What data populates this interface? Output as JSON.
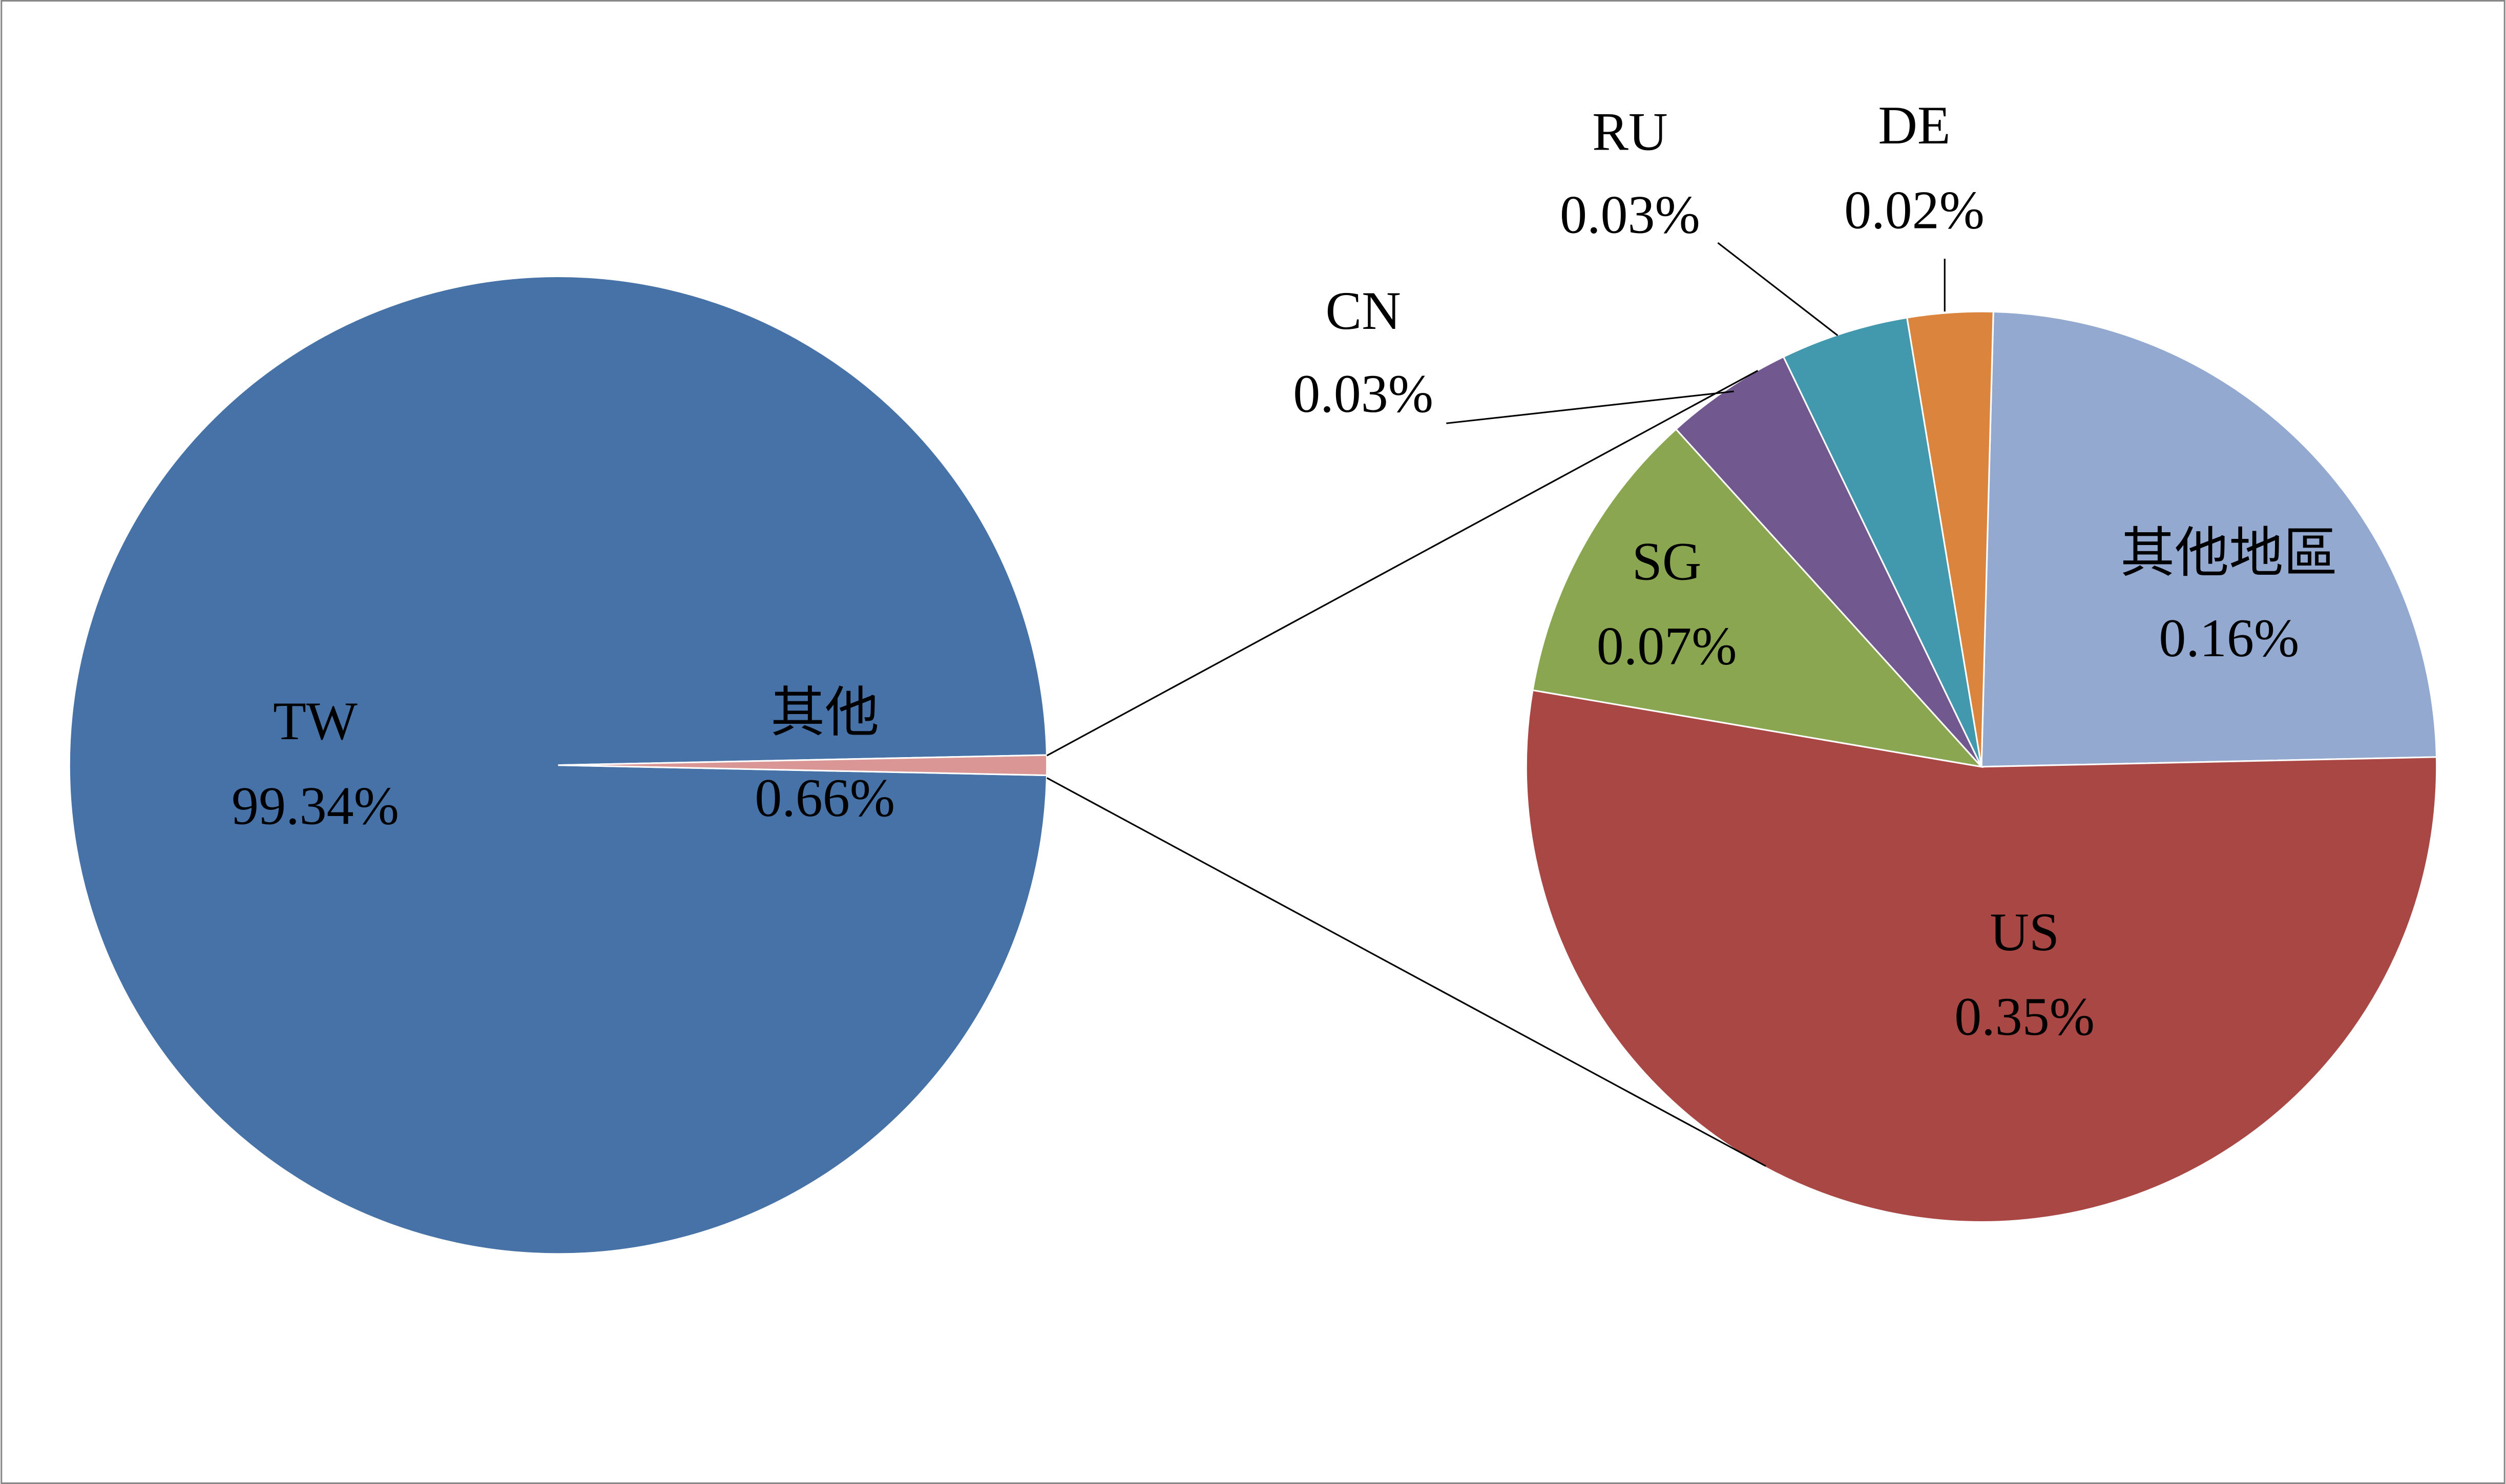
{
  "chart_data": [
    {
      "type": "pie",
      "categories": [
        "TW",
        "其他"
      ],
      "values": [
        99.34,
        0.66
      ],
      "value_labels": [
        "99.34%",
        "0.66%"
      ],
      "colors": [
        "#4672a7",
        "#d99694"
      ]
    },
    {
      "type": "pie",
      "categories": [
        "其他地區",
        "US",
        "SG",
        "CN",
        "RU",
        "DE"
      ],
      "values": [
        0.16,
        0.35,
        0.07,
        0.03,
        0.03,
        0.02
      ],
      "value_labels": [
        "0.16%",
        "0.35%",
        "0.07%",
        "0.03%",
        "0.03%",
        "0.02%"
      ],
      "colors": [
        "#94a9d0",
        "#a94745",
        "#8aa650",
        "#71588f",
        "#4298ad",
        "#da843d"
      ]
    }
  ]
}
